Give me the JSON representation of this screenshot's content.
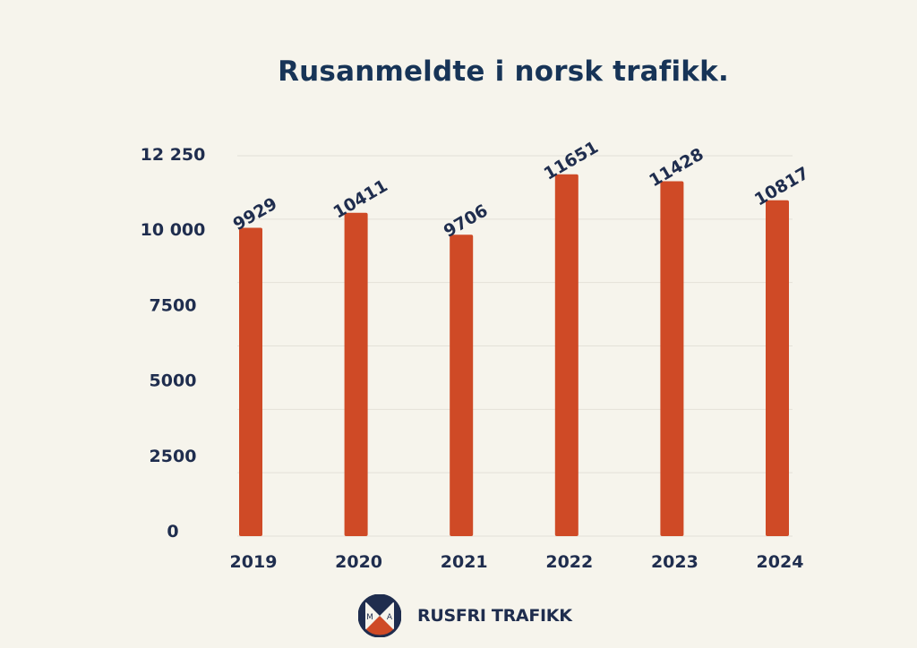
{
  "chart_data": {
    "type": "bar",
    "title": "Rusanmeldte i norsk trafikk.",
    "categories": [
      "2019",
      "2020",
      "2021",
      "2022",
      "2023",
      "2024"
    ],
    "values": [
      9929,
      10411,
      9706,
      11651,
      11428,
      10817
    ],
    "data_labels": [
      "9929",
      "10411",
      "9706",
      "11651",
      "11428",
      "10817"
    ],
    "ytick_labels": [
      "0",
      "2500",
      "5000",
      "7500",
      "10 000",
      "12 250"
    ],
    "ylim": [
      0,
      12250
    ],
    "grid": true,
    "xlabel": "",
    "ylabel": "",
    "colors": {
      "bar": "#cf4a26",
      "text": "#1f2d4e",
      "grid": "#e3e1d8",
      "title": "#173457"
    }
  },
  "brand": {
    "name": "RUSFRI TRAFIKK",
    "logo_letters": "MA"
  }
}
